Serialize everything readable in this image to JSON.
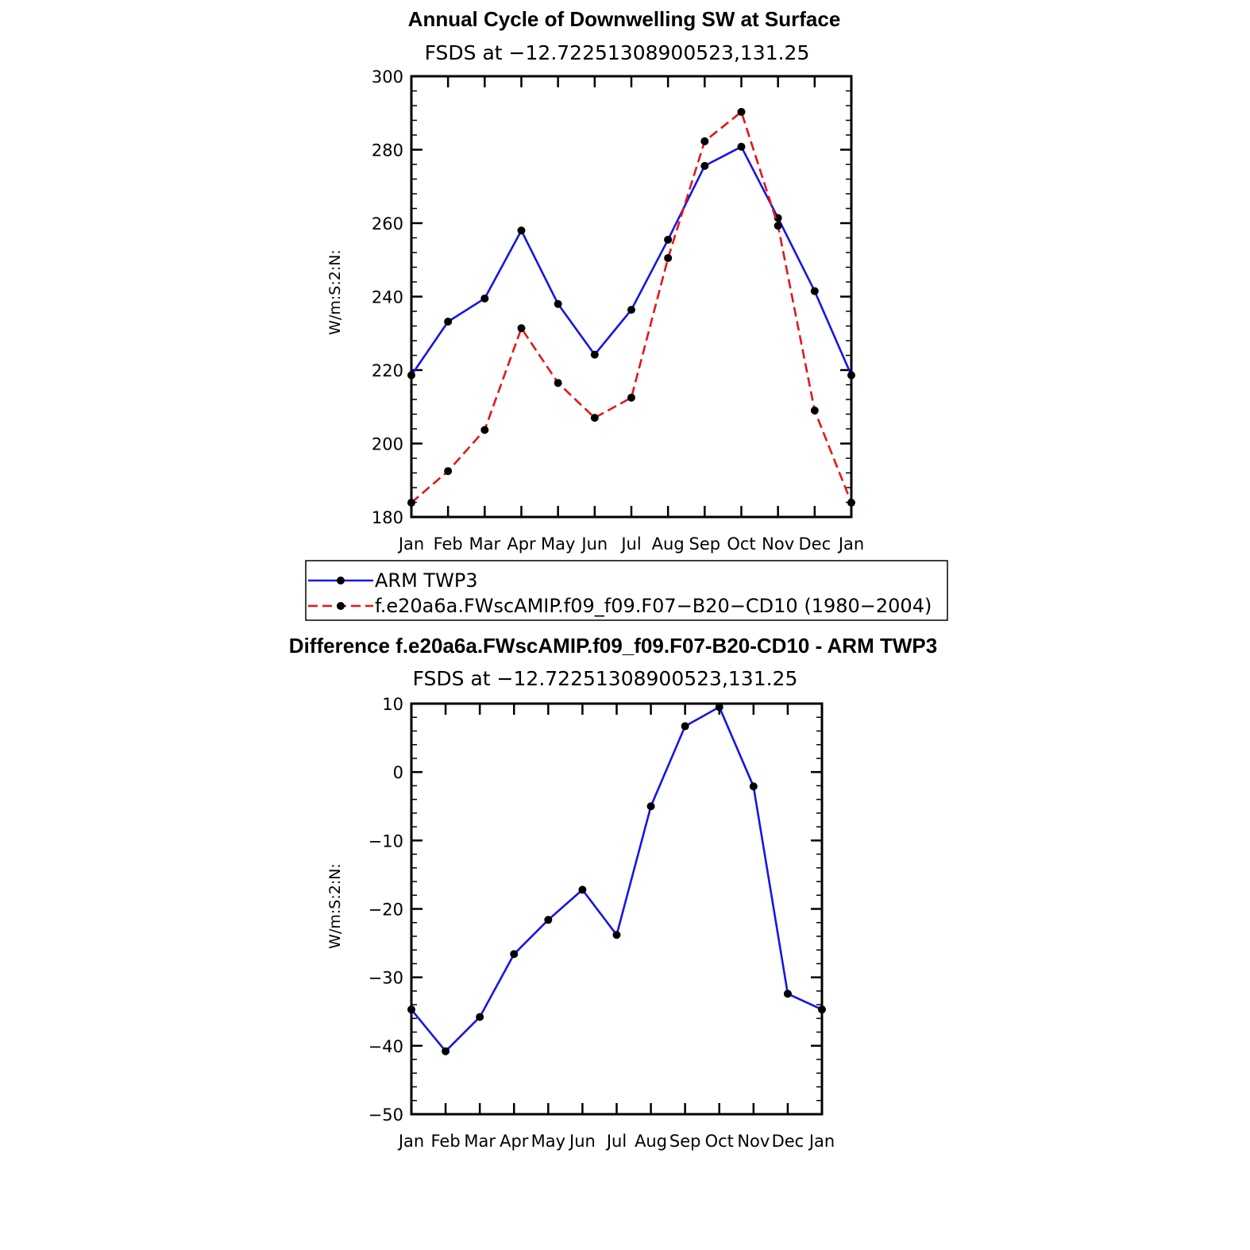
{
  "chart_data": [
    {
      "type": "line",
      "title": "Annual Cycle of Downwelling SW at Surface",
      "subtitle": "FSDS at −12.72251308900523,131.25",
      "ylabel": "W/m:S:2:N:",
      "ylim": [
        180,
        300
      ],
      "yticks": [
        "180",
        "200",
        "220",
        "240",
        "260",
        "280",
        "300"
      ],
      "categories": [
        "Jan",
        "Feb",
        "Mar",
        "Apr",
        "May",
        "Jun",
        "Jul",
        "Aug",
        "Sep",
        "Oct",
        "Nov",
        "Dec",
        "Jan"
      ],
      "grid": false,
      "series": [
        {
          "name": "ARM TWP3",
          "color": "#1515e8",
          "dash": "solid",
          "values": [
            218.6,
            233.2,
            239.5,
            258.0,
            238.0,
            224.2,
            236.4,
            255.5,
            275.6,
            280.8,
            261.4,
            241.5,
            218.6
          ]
        },
        {
          "name": "f.e20a6a.FWscAMIP.f09_f09.F07−B20−CD10 (1980−2004)",
          "color": "#e81515",
          "dash": "dashed",
          "values": [
            183.9,
            192.5,
            203.7,
            231.4,
            216.5,
            207.0,
            212.5,
            250.5,
            282.3,
            290.3,
            259.3,
            209.0,
            183.9
          ]
        }
      ]
    },
    {
      "type": "line",
      "title": "Difference f.e20a6a.FWscAMIP.f09_f09.F07-B20-CD10 - ARM TWP3",
      "subtitle": "FSDS at −12.72251308900523,131.25",
      "ylabel": "W/m:S:2:N:",
      "ylim": [
        -50,
        10
      ],
      "yticks": [
        "−50",
        "−40",
        "−30",
        "−20",
        "−10",
        "0",
        "10"
      ],
      "categories": [
        "Jan",
        "Feb",
        "Mar",
        "Apr",
        "May",
        "Jun",
        "Jul",
        "Aug",
        "Sep",
        "Oct",
        "Nov",
        "Dec",
        "Jan"
      ],
      "grid": false,
      "series": [
        {
          "color": "#1515e8",
          "dash": "solid",
          "values": [
            -34.7,
            -40.8,
            -35.8,
            -26.6,
            -21.6,
            -17.2,
            -23.8,
            -5.0,
            6.7,
            9.5,
            -2.1,
            -32.4,
            -34.7
          ]
        }
      ]
    }
  ]
}
